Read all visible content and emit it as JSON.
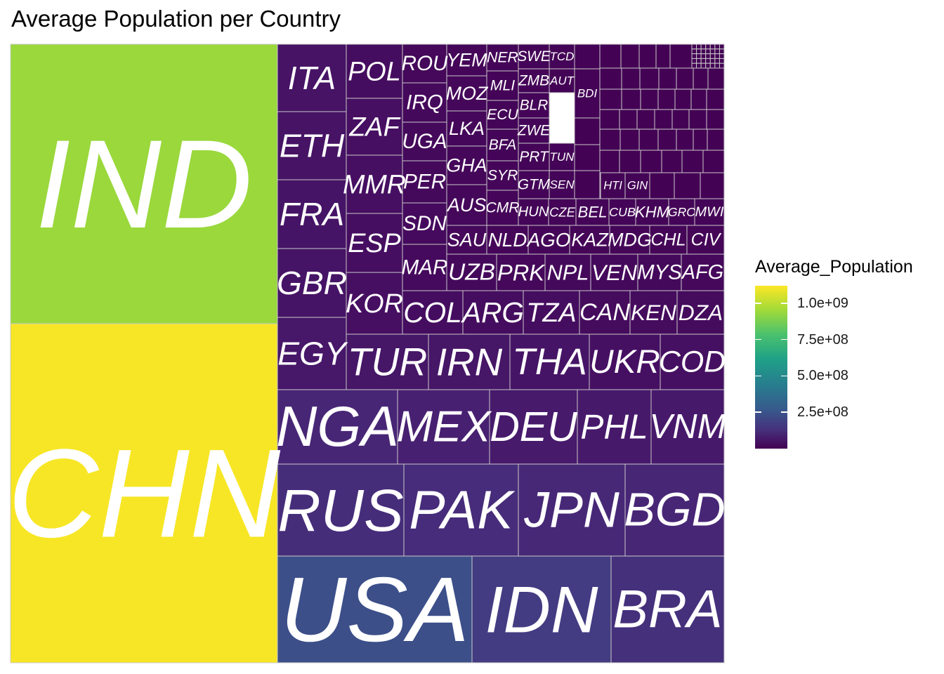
{
  "chart_data": {
    "type": "treemap",
    "title": "Average Population per Country",
    "legend": {
      "title": "Average_Population",
      "placement": "right",
      "colormap": "viridis",
      "range": [
        0,
        1120000000
      ],
      "ticks": [
        {
          "value": 1000000000,
          "label": "1.0e+09"
        },
        {
          "value": 750000000,
          "label": "7.5e+08"
        },
        {
          "value": 500000000,
          "label": "5.0e+08"
        },
        {
          "value": 250000000,
          "label": "2.5e+08"
        }
      ]
    },
    "series": [
      {
        "values": [
          {
            "label": "CHN",
            "value": 1110000000
          },
          {
            "label": "IND",
            "value": 950000000
          },
          {
            "label": "USA",
            "value": 270000000
          },
          {
            "label": "IDN",
            "value": 195000000
          },
          {
            "label": "BRA",
            "value": 155000000
          },
          {
            "label": "RUS",
            "value": 143000000
          },
          {
            "label": "PAK",
            "value": 140000000
          },
          {
            "label": "JPN",
            "value": 125000000
          },
          {
            "label": "BGD",
            "value": 120000000
          },
          {
            "label": "NGA",
            "value": 120000000
          },
          {
            "label": "MEX",
            "value": 98000000
          },
          {
            "label": "DEU",
            "value": 81000000
          },
          {
            "label": "PHL",
            "value": 78000000
          },
          {
            "label": "VNM",
            "value": 77000000
          },
          {
            "label": "EGY",
            "value": 72000000
          },
          {
            "label": "TUR",
            "value": 66000000
          },
          {
            "label": "IRN",
            "value": 66000000
          },
          {
            "label": "THA",
            "value": 62000000
          },
          {
            "label": "GBR",
            "value": 62000000
          },
          {
            "label": "FRA",
            "value": 61000000
          },
          {
            "label": "ITA",
            "value": 57000000
          },
          {
            "label": "ETH",
            "value": 57000000
          },
          {
            "label": "UKR",
            "value": 47000000
          },
          {
            "label": "COD",
            "value": 48000000
          },
          {
            "label": "KOR",
            "value": 46000000
          },
          {
            "label": "ESP",
            "value": 43000000
          },
          {
            "label": "MMR",
            "value": 46000000
          },
          {
            "label": "ZAF",
            "value": 45000000
          },
          {
            "label": "COL",
            "value": 40000000
          },
          {
            "label": "ARG",
            "value": 38000000
          },
          {
            "label": "TZA",
            "value": 39000000
          },
          {
            "label": "POL",
            "value": 38000000
          },
          {
            "label": "CAN",
            "value": 32000000
          },
          {
            "label": "KEN",
            "value": 32000000
          },
          {
            "label": "DZA",
            "value": 32000000
          },
          {
            "label": "UZB",
            "value": 25000000
          },
          {
            "label": "PRK",
            "value": 22000000
          },
          {
            "label": "NPL",
            "value": 24000000
          },
          {
            "label": "VEN",
            "value": 25000000
          },
          {
            "label": "MYS",
            "value": 24000000
          },
          {
            "label": "AFG",
            "value": 23000000
          },
          {
            "label": "MAR",
            "value": 30000000
          },
          {
            "label": "SDN",
            "value": 30000000
          },
          {
            "label": "PER",
            "value": 26000000
          },
          {
            "label": "UGA",
            "value": 26000000
          },
          {
            "label": "IRQ",
            "value": 26000000
          },
          {
            "label": "ROU",
            "value": 21000000
          },
          {
            "label": "SAU",
            "value": 22000000
          },
          {
            "label": "AUS",
            "value": 20000000
          },
          {
            "label": "GHA",
            "value": 20000000
          },
          {
            "label": "LKA",
            "value": 19000000
          },
          {
            "label": "MOZ",
            "value": 19000000
          },
          {
            "label": "YEM",
            "value": 17000000
          },
          {
            "label": "NLD",
            "value": 16000000
          },
          {
            "label": "AGO",
            "value": 16000000
          },
          {
            "label": "KAZ",
            "value": 15000000
          },
          {
            "label": "MDG",
            "value": 15000000
          },
          {
            "label": "CHL",
            "value": 15000000
          },
          {
            "label": "CIV",
            "value": 15000000
          },
          {
            "label": "CMR",
            "value": 16000000
          },
          {
            "label": "SYR",
            "value": 16000000
          },
          {
            "label": "BFA",
            "value": 13000000
          },
          {
            "label": "ECU",
            "value": 13000000
          },
          {
            "label": "MLI",
            "value": 12000000
          },
          {
            "label": "NER",
            "value": 12000000
          },
          {
            "label": "HUN",
            "value": 10000000
          },
          {
            "label": "CZE",
            "value": 10000000
          },
          {
            "label": "BEL",
            "value": 10000000
          },
          {
            "label": "CUB",
            "value": 11000000
          },
          {
            "label": "KHM",
            "value": 11000000
          },
          {
            "label": "GRC",
            "value": 11000000
          },
          {
            "label": "MWI",
            "value": 11000000
          },
          {
            "label": "GTM",
            "value": 12000000
          },
          {
            "label": "SEN",
            "value": 10000000
          },
          {
            "label": "PRT",
            "value": 10000000
          },
          {
            "label": "TUN",
            "value": 9000000
          },
          {
            "label": "ZWE",
            "value": 12000000
          },
          {
            "label": "BLR",
            "value": 10000000
          },
          {
            "label": "ZMB",
            "value": 10000000
          },
          {
            "label": "SWE",
            "value": 9000000
          },
          {
            "label": "AUT",
            "value": 8000000
          },
          {
            "label": "TCD",
            "value": 9000000
          },
          {
            "label": "BDI",
            "value": 7000000
          },
          {
            "label": "HTI",
            "value": 8000000
          },
          {
            "label": "GIN",
            "value": 8000000
          }
        ]
      }
    ]
  }
}
